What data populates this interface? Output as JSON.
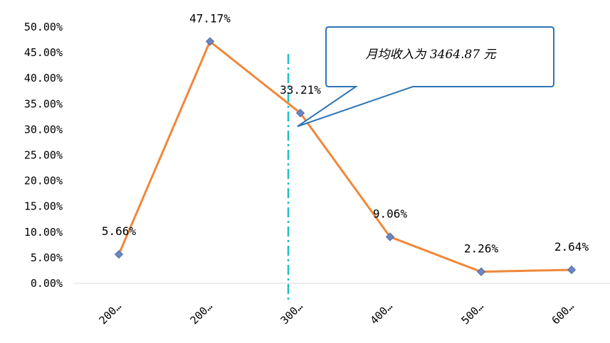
{
  "chart_data": {
    "type": "line",
    "categories": [
      "200…",
      "200…",
      "300…",
      "400…",
      "500…",
      "600…"
    ],
    "values": [
      5.66,
      47.17,
      33.21,
      9.06,
      2.26,
      2.64
    ],
    "data_labels": [
      "5.66%",
      "47.17%",
      "33.21%",
      "9.06%",
      "2.26%",
      "2.64%"
    ],
    "y_ticks": [
      "0.00%",
      "5.00%",
      "10.00%",
      "15.00%",
      "20.00%",
      "25.00%",
      "30.00%",
      "35.00%",
      "40.00%",
      "45.00%",
      "50.00%"
    ],
    "ylim": [
      0,
      50
    ],
    "grid": false,
    "line_color": "#f0883a",
    "marker_color": "#6b86c4",
    "reference_line_color": "#1fbfc4",
    "callout": {
      "text": "月均收入为 3464.87 元",
      "border_color": "#2e75b6"
    }
  }
}
